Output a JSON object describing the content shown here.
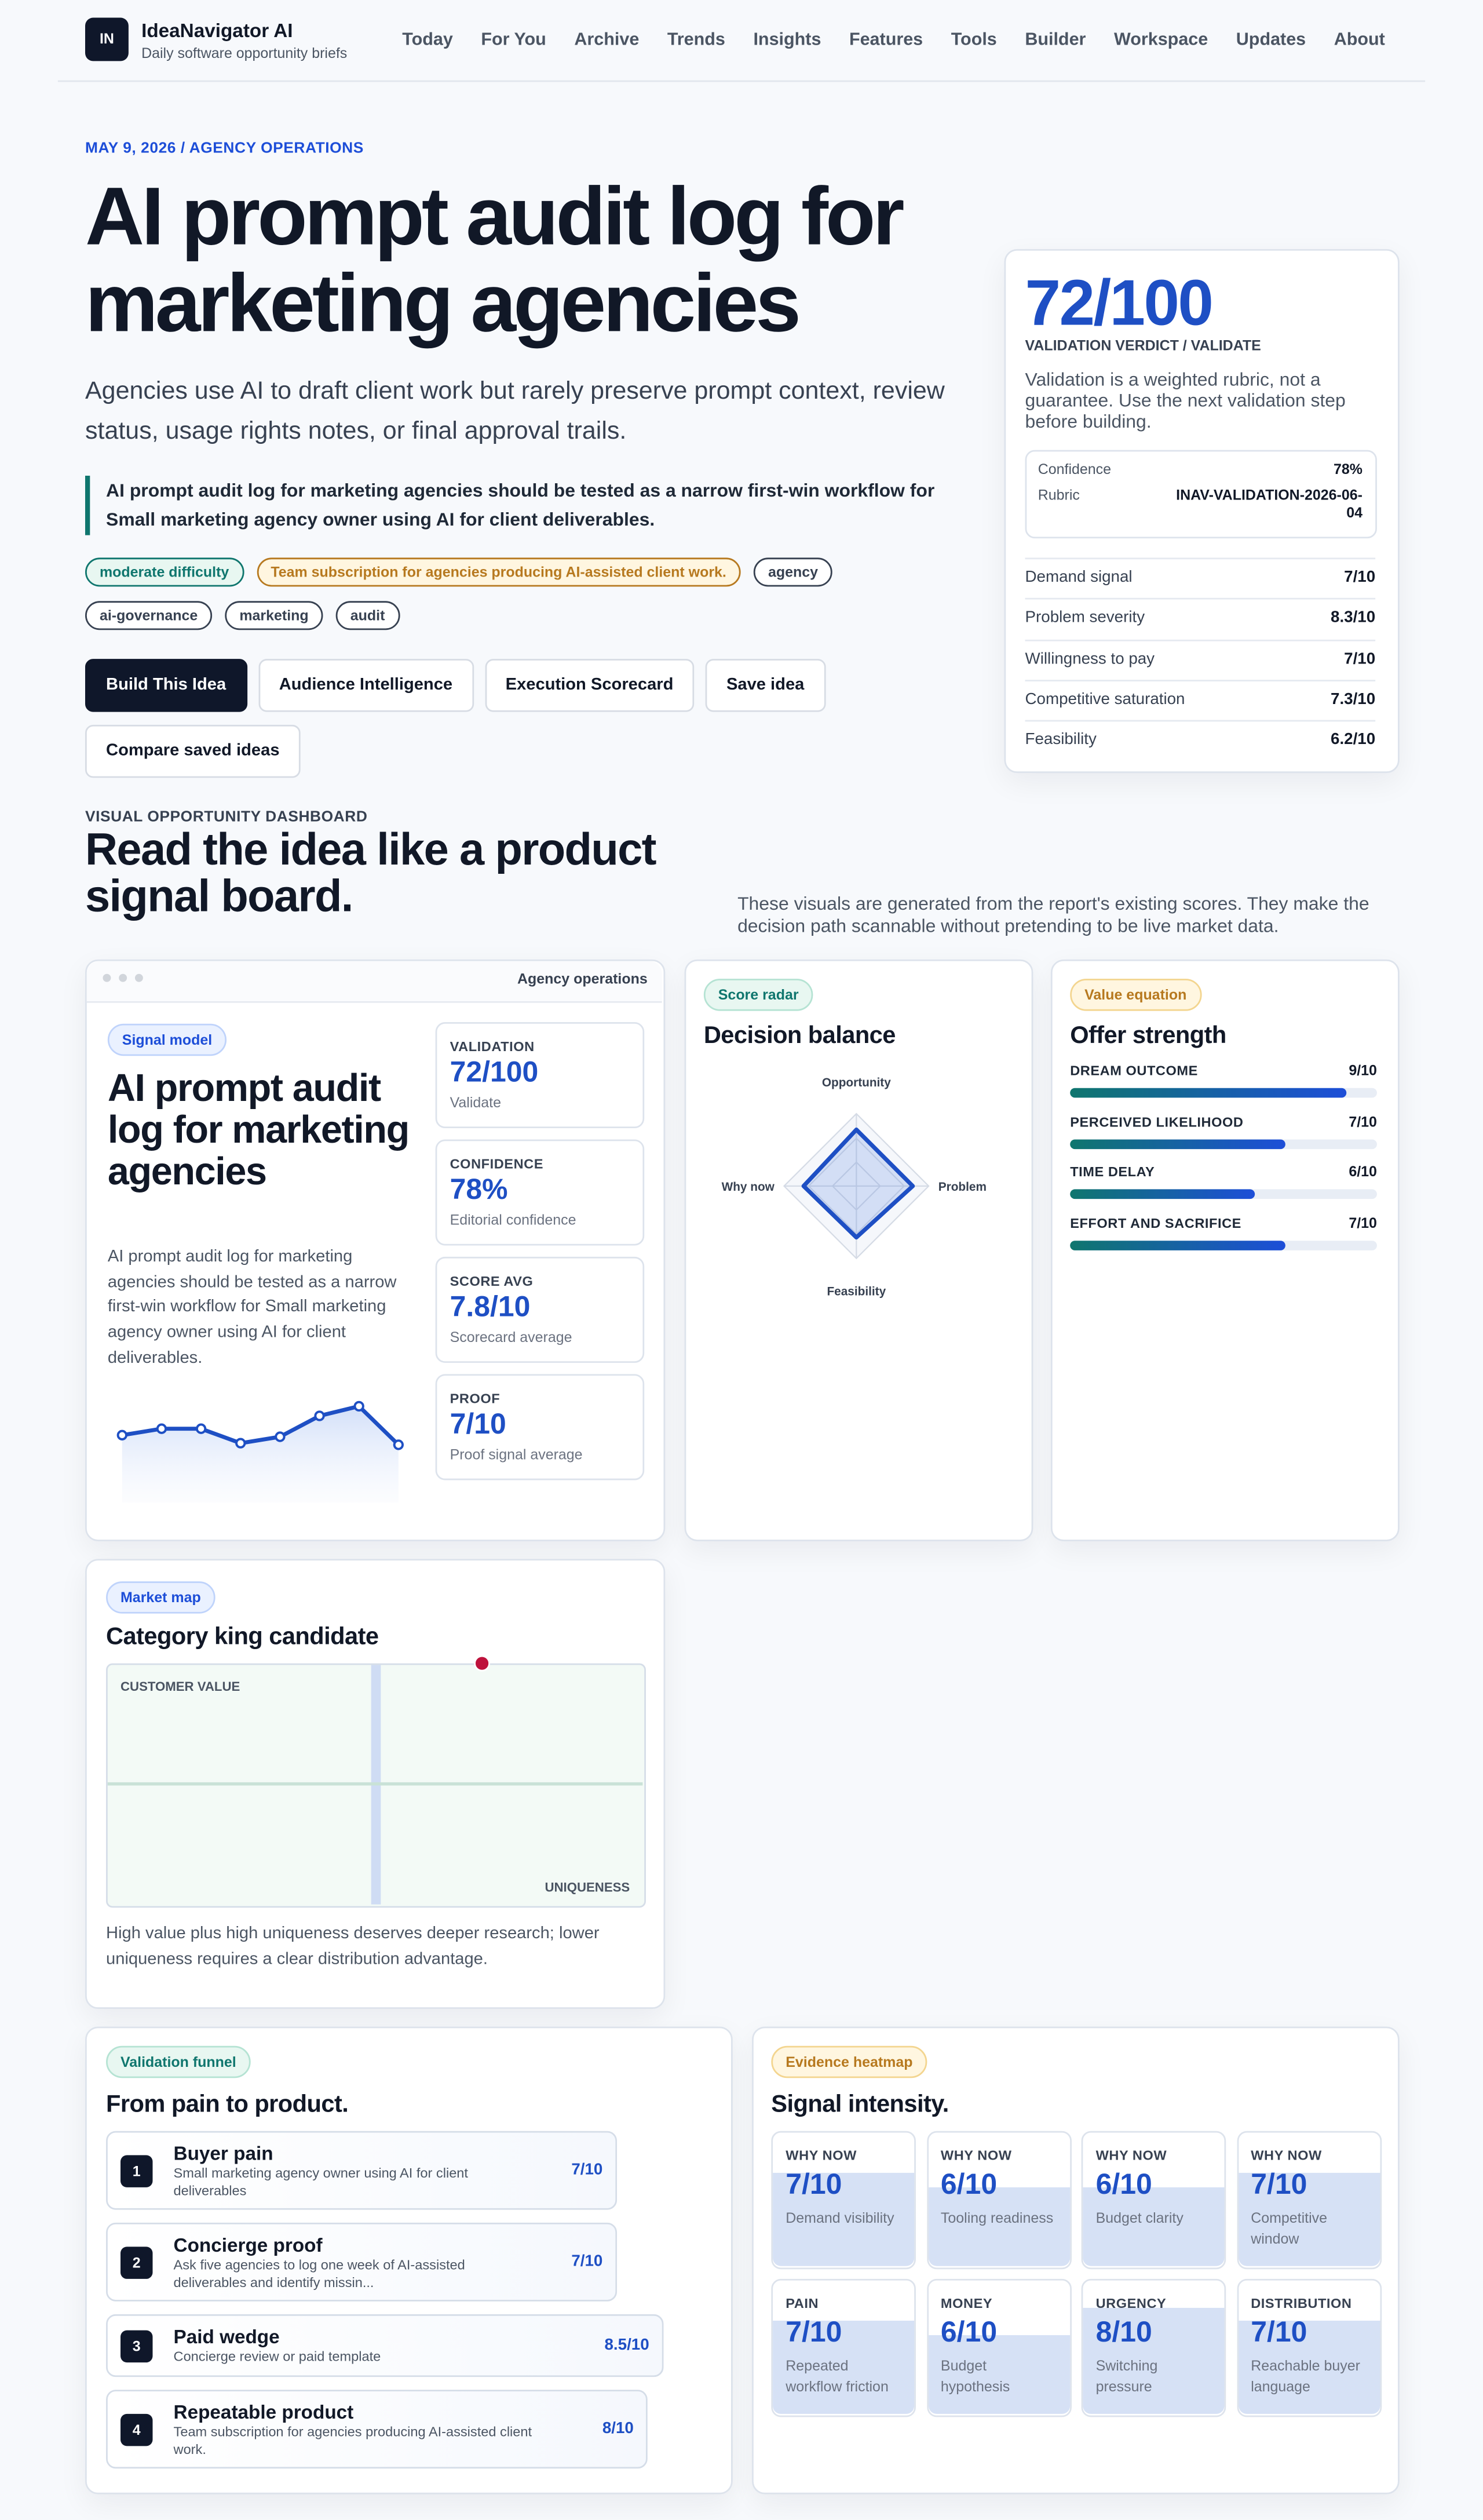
{
  "header": {
    "logo": "IN",
    "brand": "IdeaNavigator AI",
    "tagline": "Daily software opportunity briefs",
    "nav": [
      "Today",
      "For You",
      "Archive",
      "Trends",
      "Insights",
      "Features",
      "Tools",
      "Builder",
      "Workspace",
      "Updates",
      "About"
    ]
  },
  "hero": {
    "eyebrow": "MAY 9, 2026 / AGENCY OPERATIONS",
    "title": "AI prompt audit log for marketing agencies",
    "subtitle": "Agencies use AI to draft client work but rarely preserve prompt context, review status, usage rights notes, or final approval trails.",
    "thesis": "AI prompt audit log for marketing agencies should be tested as a narrow first-win workflow for Small marketing agency owner using AI for client deliverables.",
    "tags": [
      {
        "text": "moderate difficulty",
        "tone": "green"
      },
      {
        "text": "Team subscription for agencies producing AI-assisted client work.",
        "tone": "yellow"
      },
      {
        "text": "agency",
        "tone": "gray"
      },
      {
        "text": "ai-governance",
        "tone": "gray"
      },
      {
        "text": "marketing",
        "tone": "gray"
      },
      {
        "text": "audit",
        "tone": "gray"
      }
    ],
    "buttons": [
      "Build This Idea",
      "Audience Intelligence",
      "Execution Scorecard",
      "Save idea",
      "Compare saved ideas"
    ]
  },
  "verdict": {
    "score": "72/100",
    "label": "VALIDATION VERDICT / VALIDATE",
    "note": "Validation is a weighted rubric, not a guarantee. Use the next validation step before building.",
    "meta": [
      {
        "label": "Confidence",
        "value": "78%"
      },
      {
        "label": "Rubric",
        "value": "INAV-VALIDATION-2026-06-04"
      }
    ],
    "rows": [
      {
        "label": "Demand signal",
        "value": "7/10"
      },
      {
        "label": "Problem severity",
        "value": "8.3/10"
      },
      {
        "label": "Willingness to pay",
        "value": "7/10"
      },
      {
        "label": "Competitive saturation",
        "value": "7.3/10"
      },
      {
        "label": "Feasibility",
        "value": "6.2/10"
      }
    ]
  },
  "dashboard": {
    "eyebrow": "VISUAL OPPORTUNITY DASHBOARD",
    "heading": "Read the idea like a product signal board.",
    "intro": "These visuals are generated from the report's existing scores. They make the decision path scannable without pretending to be live market data."
  },
  "signal_card": {
    "window_title": "Agency operations",
    "pill": "Signal model",
    "title": "AI prompt audit log for marketing agencies",
    "text": "AI prompt audit log for marketing agencies should be tested as a narrow first-win workflow for Small marketing agency owner using AI for client deliverables.",
    "sparkline": [
      37,
      41,
      41,
      32,
      36,
      49,
      55,
      31
    ],
    "metrics": [
      {
        "label": "VALIDATION",
        "value": "72/100",
        "caption": "Validate"
      },
      {
        "label": "CONFIDENCE",
        "value": "78%",
        "caption": "Editorial confidence"
      },
      {
        "label": "SCORE AVG",
        "value": "7.8/10",
        "caption": "Scorecard average"
      },
      {
        "label": "PROOF",
        "value": "7/10",
        "caption": "Proof signal average"
      }
    ]
  },
  "radar_card": {
    "pill": "Score radar",
    "title": "Decision balance",
    "axes": [
      {
        "label": "Opportunity",
        "value": 7.8
      },
      {
        "label": "Problem",
        "value": 7.8
      },
      {
        "label": "Feasibility",
        "value": 7.1
      },
      {
        "label": "Why now",
        "value": 7.3
      }
    ]
  },
  "offer_card": {
    "pill": "Value equation",
    "title": "Offer strength",
    "items": [
      {
        "label": "DREAM OUTCOME",
        "value": "9/10"
      },
      {
        "label": "PERCEIVED LIKELIHOOD",
        "value": "7/10"
      },
      {
        "label": "TIME DELAY",
        "value": "6/10"
      },
      {
        "label": "EFFORT AND SACRIFICE",
        "value": "7/10"
      }
    ]
  },
  "market_card": {
    "pill": "Market map",
    "title": "Category king candidate",
    "y_label": "CUSTOMER VALUE",
    "x_label": "UNIQUENESS",
    "caption": "High value plus high uniqueness deserves deeper research; lower uniqueness requires a clear distribution advantage."
  },
  "funnel_card": {
    "pill": "Validation funnel",
    "title": "From pain to product.",
    "steps": [
      {
        "number": "1",
        "title": "Buyer pain",
        "text": "Small marketing agency owner using AI for client deliverables",
        "score": "7/10"
      },
      {
        "number": "2",
        "title": "Concierge proof",
        "text": "Ask five agencies to log one week of AI-assisted deliverables and identify missin...",
        "score": "7/10"
      },
      {
        "number": "3",
        "title": "Paid wedge",
        "text": "Concierge review or paid template",
        "score": "8.5/10"
      },
      {
        "number": "4",
        "title": "Repeatable product",
        "text": "Team subscription for agencies producing AI-assisted client work.",
        "score": "8/10"
      }
    ]
  },
  "heatmap_card": {
    "pill": "Evidence heatmap",
    "title": "Signal intensity.",
    "cells": [
      {
        "label": "WHY NOW",
        "score": "7/10",
        "caption": "Demand visibility"
      },
      {
        "label": "WHY NOW",
        "score": "6/10",
        "caption": "Tooling readiness"
      },
      {
        "label": "WHY NOW",
        "score": "6/10",
        "caption": "Budget clarity"
      },
      {
        "label": "WHY NOW",
        "score": "7/10",
        "caption": "Competitive window"
      },
      {
        "label": "PAIN",
        "score": "7/10",
        "caption": "Repeated workflow friction"
      },
      {
        "label": "MONEY",
        "score": "6/10",
        "caption": "Budget hypothesis"
      },
      {
        "label": "URGENCY",
        "score": "8/10",
        "caption": "Switching pressure"
      },
      {
        "label": "DISTRIBUTION",
        "score": "7/10",
        "caption": "Reachable buyer language"
      }
    ]
  }
}
